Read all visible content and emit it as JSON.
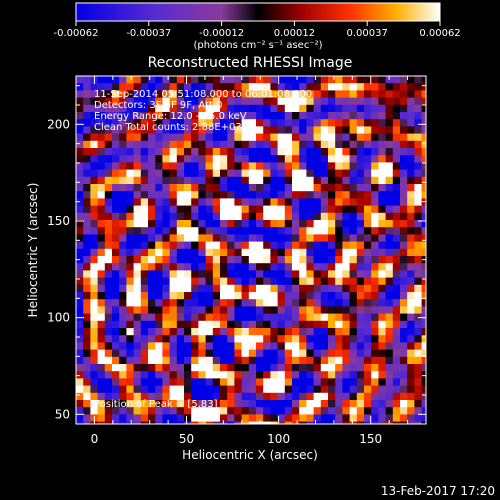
{
  "colorbar": {
    "tick_labels": [
      "-0.00062",
      "-0.00037",
      "-0.00012",
      "0.00012",
      "0.00037",
      "0.00062"
    ],
    "unit_label": "(photons cm⁻² s⁻¹ asec⁻²)",
    "range": [
      -0.00062,
      0.00062
    ]
  },
  "image": {
    "title": "Reconstructed RHESSI Image",
    "info_lines": [
      "11-Sep-2014 05:51:08.000 to 06:01:08.000",
      "Detectors: 3F 6F 9F, Att 0",
      "Energy Range: 12.0 - 25.0 keV",
      "Clean    Total counts: 2.88E+03"
    ],
    "peak_label": "Position of Peak = [5,83]"
  },
  "footer": {
    "timestamp": "13-Feb-2017 17:20"
  },
  "chart_data": {
    "type": "heatmap",
    "title": "Reconstructed RHESSI Image",
    "xlabel": "Heliocentric X (arcsec)",
    "ylabel": "Heliocentric Y (arcsec)",
    "xlim": [
      -10,
      180
    ],
    "ylim": [
      45,
      225
    ],
    "x_ticks": [
      0,
      50,
      100,
      150
    ],
    "y_ticks": [
      50,
      100,
      150,
      200
    ],
    "peak_position": [
      5,
      83
    ],
    "colorscale": "red-temperature (blue negative → white positive)",
    "grid": false,
    "legend": "none"
  }
}
